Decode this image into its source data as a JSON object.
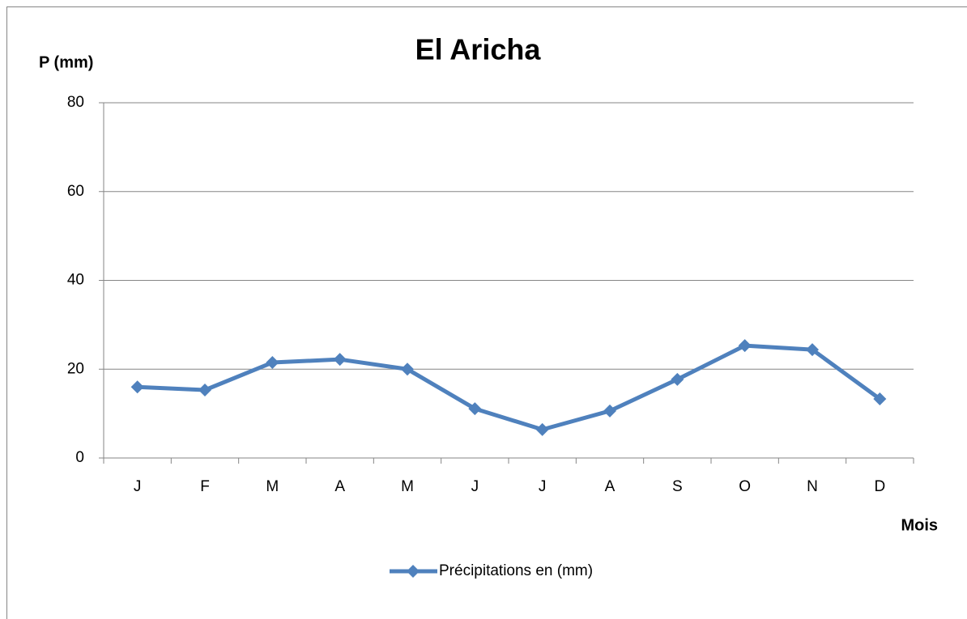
{
  "chart_data": {
    "type": "line",
    "title": "El Aricha",
    "y_label": "P (mm)",
    "x_label": "Mois",
    "categories": [
      "J",
      "F",
      "M",
      "A",
      "M",
      "J",
      "J",
      "A",
      "S",
      "O",
      "N",
      "D"
    ],
    "series": [
      {
        "name": "Précipitations en (mm)",
        "color": "#4f81bd",
        "values": [
          16,
          15.3,
          21.5,
          22.2,
          20,
          11.1,
          6.4,
          10.6,
          17.7,
          25.3,
          24.4,
          13.3
        ]
      }
    ],
    "ylim": [
      0,
      80
    ],
    "yticks": [
      0,
      20,
      40,
      60,
      80
    ],
    "grid": true,
    "legend": "bottom"
  }
}
